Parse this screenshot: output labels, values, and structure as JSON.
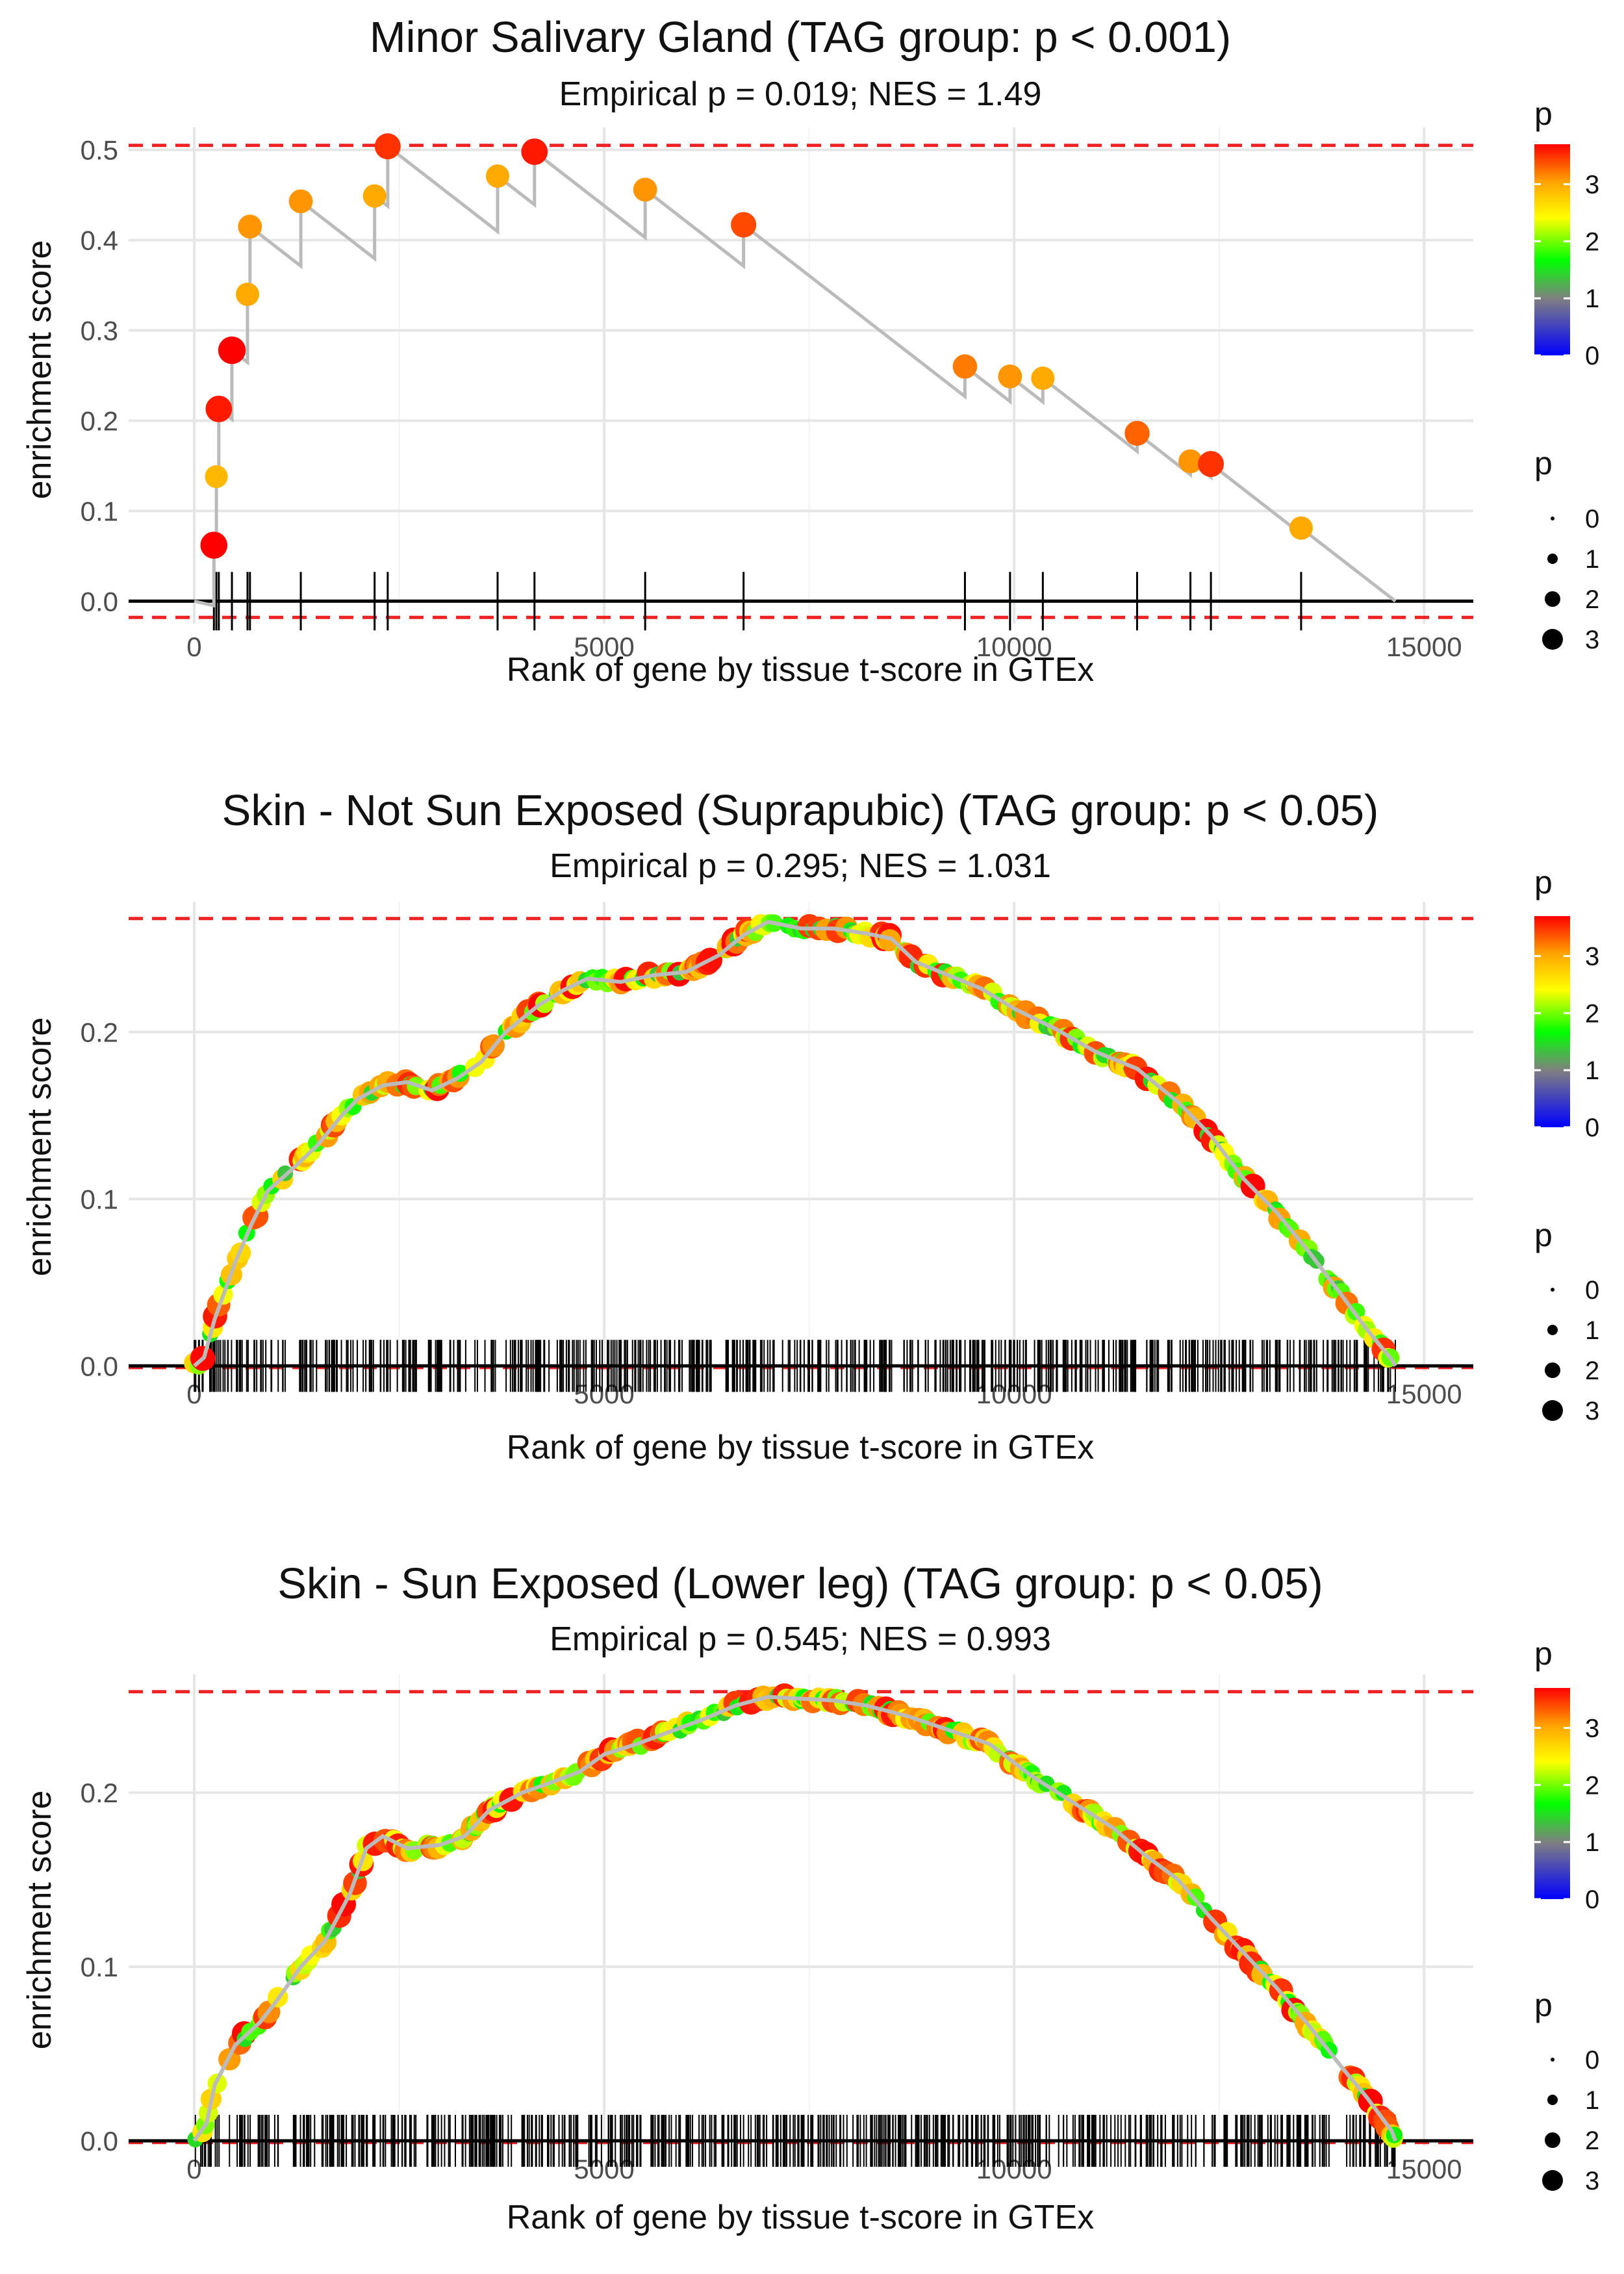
{
  "colors": {
    "p_scale": [
      "#0000FF",
      "#808080",
      "#00FF00",
      "#FFFF00",
      "#FFA500",
      "#FF0000"
    ],
    "reference_line": "#EE2222",
    "curve": "#BBBBBB",
    "grid": "#E6E6E6"
  },
  "legends": {
    "color_title": "p",
    "color_ticks": [
      "0",
      "1",
      "2",
      "3"
    ],
    "size_title": "p",
    "size_ticks": [
      "0",
      "1",
      "2",
      "3"
    ]
  },
  "chart_data": [
    {
      "type": "line",
      "title": "Minor Salivary Gland (TAG group: p < 0.001)",
      "subtitle": "Empirical p = 0.019; NES = 1.49",
      "xlabel": "Rank of gene by tissue t-score in GTEx",
      "ylabel": "enrichment score",
      "xlim": [
        -800,
        15600
      ],
      "ylim": [
        -0.025,
        0.525
      ],
      "x_ticks": [
        0,
        5000,
        10000,
        15000
      ],
      "x_tick_labels": [
        "0",
        "5000",
        "10000",
        "15000"
      ],
      "y_ticks": [
        0,
        0.1,
        0.2,
        0.3,
        0.4,
        0.5
      ],
      "y_tick_labels": [
        "0.0",
        "0.1",
        "0.2",
        "0.3",
        "0.4",
        "0.5"
      ],
      "max_es": 0.505,
      "min_es": -0.018,
      "n_genes": 14650,
      "hits": [
        {
          "x": 240,
          "es": 0.062,
          "p": 3.7
        },
        {
          "x": 270,
          "es": 0.138,
          "p": 2.9
        },
        {
          "x": 300,
          "es": 0.213,
          "p": 3.6
        },
        {
          "x": 460,
          "es": 0.278,
          "p": 3.8
        },
        {
          "x": 650,
          "es": 0.34,
          "p": 3.0
        },
        {
          "x": 680,
          "es": 0.415,
          "p": 3.1
        },
        {
          "x": 1300,
          "es": 0.443,
          "p": 3.1
        },
        {
          "x": 2200,
          "es": 0.449,
          "p": 3.0
        },
        {
          "x": 2360,
          "es": 0.504,
          "p": 3.5
        },
        {
          "x": 3700,
          "es": 0.471,
          "p": 3.0
        },
        {
          "x": 4150,
          "es": 0.498,
          "p": 3.6
        },
        {
          "x": 5500,
          "es": 0.456,
          "p": 3.1
        },
        {
          "x": 6700,
          "es": 0.417,
          "p": 3.4
        },
        {
          "x": 9400,
          "es": 0.26,
          "p": 3.2
        },
        {
          "x": 9950,
          "es": 0.249,
          "p": 3.1
        },
        {
          "x": 10350,
          "es": 0.247,
          "p": 3.0
        },
        {
          "x": 11500,
          "es": 0.186,
          "p": 3.3
        },
        {
          "x": 12150,
          "es": 0.155,
          "p": 3.1
        },
        {
          "x": 12400,
          "es": 0.152,
          "p": 3.5
        },
        {
          "x": 13500,
          "es": 0.081,
          "p": 3.0
        }
      ]
    },
    {
      "type": "line",
      "title": "Skin - Not Sun Exposed (Suprapubic) (TAG group: p < 0.05)",
      "subtitle": "Empirical p = 0.295; NES = 1.031",
      "xlabel": "Rank of gene by tissue t-score in GTEx",
      "ylabel": "enrichment score",
      "xlim": [
        -800,
        15600
      ],
      "ylim": [
        -0.003,
        0.278
      ],
      "x_ticks": [
        0,
        5000,
        10000,
        15000
      ],
      "x_tick_labels": [
        "0",
        "5000",
        "10000",
        "15000"
      ],
      "y_ticks": [
        0,
        0.1,
        0.2
      ],
      "y_tick_labels": [
        "0.0",
        "0.1",
        "0.2"
      ],
      "max_es": 0.268,
      "min_es": -0.001,
      "n_genes": 14650,
      "hit_count": 560,
      "curve": [
        [
          0,
          0
        ],
        [
          120,
          0.005
        ],
        [
          250,
          0.028
        ],
        [
          500,
          0.062
        ],
        [
          700,
          0.085
        ],
        [
          900,
          0.105
        ],
        [
          1200,
          0.118
        ],
        [
          1500,
          0.132
        ],
        [
          1800,
          0.15
        ],
        [
          2000,
          0.16
        ],
        [
          2300,
          0.168
        ],
        [
          2600,
          0.17
        ],
        [
          2900,
          0.165
        ],
        [
          3200,
          0.172
        ],
        [
          3500,
          0.182
        ],
        [
          3800,
          0.2
        ],
        [
          4200,
          0.216
        ],
        [
          4500,
          0.225
        ],
        [
          4800,
          0.232
        ],
        [
          5200,
          0.23
        ],
        [
          5600,
          0.234
        ],
        [
          6000,
          0.236
        ],
        [
          6400,
          0.246
        ],
        [
          6700,
          0.258
        ],
        [
          7000,
          0.266
        ],
        [
          7400,
          0.262
        ],
        [
          7800,
          0.262
        ],
        [
          8200,
          0.259
        ],
        [
          8500,
          0.256
        ],
        [
          8800,
          0.242
        ],
        [
          9200,
          0.234
        ],
        [
          9600,
          0.226
        ],
        [
          10000,
          0.214
        ],
        [
          10500,
          0.202
        ],
        [
          11000,
          0.188
        ],
        [
          11500,
          0.178
        ],
        [
          12000,
          0.158
        ],
        [
          12400,
          0.138
        ],
        [
          12800,
          0.112
        ],
        [
          13200,
          0.092
        ],
        [
          13600,
          0.068
        ],
        [
          14000,
          0.042
        ],
        [
          14300,
          0.022
        ],
        [
          14600,
          0.004
        ],
        [
          14650,
          0
        ]
      ]
    },
    {
      "type": "line",
      "title": "Skin - Sun Exposed (Lower leg) (TAG group: p < 0.05)",
      "subtitle": "Empirical p = 0.545; NES = 0.993",
      "xlabel": "Rank of gene by tissue t-score in GTEx",
      "ylabel": "enrichment score",
      "xlim": [
        -800,
        15600
      ],
      "ylim": [
        -0.003,
        0.268
      ],
      "x_ticks": [
        0,
        5000,
        10000,
        15000
      ],
      "x_tick_labels": [
        "0",
        "5000",
        "10000",
        "15000"
      ],
      "y_ticks": [
        0,
        0.1,
        0.2
      ],
      "y_tick_labels": [
        "0.0",
        "0.1",
        "0.2"
      ],
      "max_es": 0.258,
      "min_es": -0.001,
      "n_genes": 14650,
      "hit_count": 580,
      "curve": [
        [
          0,
          0
        ],
        [
          150,
          0.01
        ],
        [
          250,
          0.032
        ],
        [
          500,
          0.055
        ],
        [
          800,
          0.068
        ],
        [
          1000,
          0.08
        ],
        [
          1300,
          0.1
        ],
        [
          1600,
          0.115
        ],
        [
          1900,
          0.142
        ],
        [
          2100,
          0.168
        ],
        [
          2300,
          0.175
        ],
        [
          2600,
          0.168
        ],
        [
          3000,
          0.17
        ],
        [
          3300,
          0.175
        ],
        [
          3600,
          0.19
        ],
        [
          4000,
          0.2
        ],
        [
          4300,
          0.205
        ],
        [
          4700,
          0.212
        ],
        [
          5000,
          0.222
        ],
        [
          5400,
          0.228
        ],
        [
          5800,
          0.235
        ],
        [
          6200,
          0.242
        ],
        [
          6600,
          0.25
        ],
        [
          7000,
          0.255
        ],
        [
          7400,
          0.254
        ],
        [
          7800,
          0.253
        ],
        [
          8200,
          0.25
        ],
        [
          8700,
          0.244
        ],
        [
          9200,
          0.236
        ],
        [
          9700,
          0.228
        ],
        [
          10200,
          0.21
        ],
        [
          10700,
          0.195
        ],
        [
          11200,
          0.18
        ],
        [
          11600,
          0.164
        ],
        [
          12000,
          0.15
        ],
        [
          12400,
          0.128
        ],
        [
          12800,
          0.108
        ],
        [
          13200,
          0.088
        ],
        [
          13600,
          0.066
        ],
        [
          14000,
          0.042
        ],
        [
          14300,
          0.025
        ],
        [
          14600,
          0.006
        ],
        [
          14650,
          0
        ]
      ]
    }
  ]
}
